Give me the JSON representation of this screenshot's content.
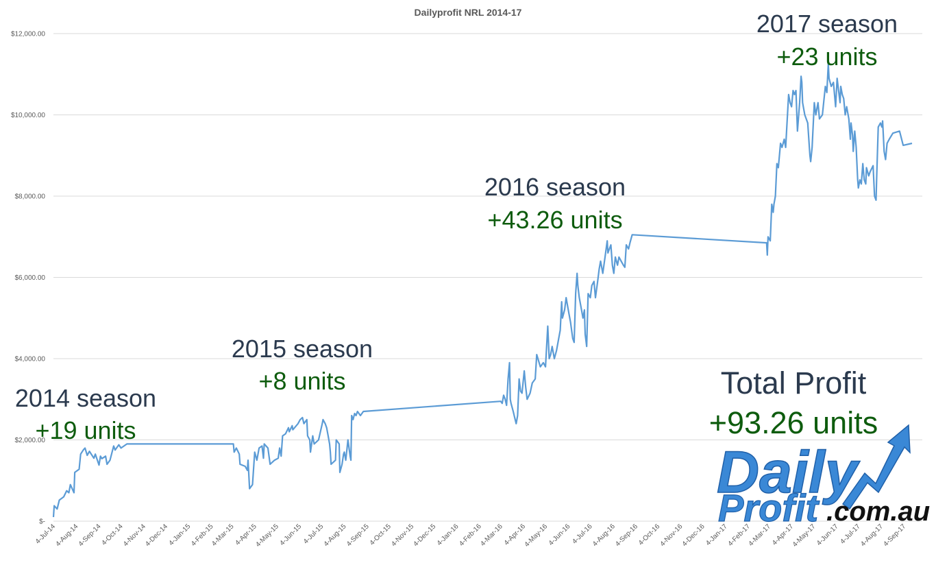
{
  "chart_data": {
    "type": "line",
    "title": "Dailyprofit NRL 2014-17",
    "xlabel": "",
    "ylabel": "",
    "ylim": [
      0,
      12000
    ],
    "y_ticks": [
      "$-",
      "$2,000.00",
      "$4,000.00",
      "$6,000.00",
      "$8,000.00",
      "$10,000.00",
      "$12,000.00"
    ],
    "y_tick_values": [
      0,
      2000,
      4000,
      6000,
      8000,
      10000,
      12000
    ],
    "x_range": [
      "2014-07-04",
      "2017-09-29"
    ],
    "x_ticks": [
      "4-Jul-14",
      "4-Aug-14",
      "4-Sep-14",
      "4-Oct-14",
      "4-Nov-14",
      "4-Dec-14",
      "4-Jan-15",
      "4-Feb-15",
      "4-Mar-15",
      "4-Apr-15",
      "4-May-15",
      "4-Jun-15",
      "4-Jul-15",
      "4-Aug-15",
      "4-Sep-15",
      "4-Oct-15",
      "4-Nov-15",
      "4-Dec-15",
      "4-Jan-16",
      "4-Feb-16",
      "4-Mar-16",
      "4-Apr-16",
      "4-May-16",
      "4-Jun-16",
      "4-Jul-16",
      "4-Aug-16",
      "4-Sep-16",
      "4-Oct-16",
      "4-Nov-16",
      "4-Dec-16",
      "4-Jan-17",
      "4-Feb-17",
      "4-Mar-17",
      "4-Apr-17",
      "4-May-17",
      "4-Jun-17",
      "4-Jul-17",
      "4-Aug-17",
      "4-Sep-17"
    ],
    "grid": true,
    "series_color": "#5b9bd5",
    "points": [
      [
        "2014-07-04",
        100
      ],
      [
        "2014-07-05",
        380
      ],
      [
        "2014-07-09",
        300
      ],
      [
        "2014-07-12",
        520
      ],
      [
        "2014-07-18",
        600
      ],
      [
        "2014-07-22",
        750
      ],
      [
        "2014-07-25",
        700
      ],
      [
        "2014-07-27",
        900
      ],
      [
        "2014-08-01",
        700
      ],
      [
        "2014-08-02",
        1200
      ],
      [
        "2014-08-08",
        1280
      ],
      [
        "2014-08-10",
        1650
      ],
      [
        "2014-08-14",
        1760
      ],
      [
        "2014-08-16",
        1800
      ],
      [
        "2014-08-19",
        1620
      ],
      [
        "2014-08-22",
        1720
      ],
      [
        "2014-08-28",
        1550
      ],
      [
        "2014-08-30",
        1650
      ],
      [
        "2014-09-04",
        1380
      ],
      [
        "2014-09-06",
        1600
      ],
      [
        "2014-09-08",
        1540
      ],
      [
        "2014-09-13",
        1600
      ],
      [
        "2014-09-15",
        1400
      ],
      [
        "2014-09-19",
        1500
      ],
      [
        "2014-09-24",
        1850
      ],
      [
        "2014-09-26",
        1750
      ],
      [
        "2014-10-01",
        1880
      ],
      [
        "2014-10-04",
        1800
      ],
      [
        "2014-10-12",
        1900
      ],
      [
        "2015-03-06",
        1900
      ],
      [
        "2015-03-07",
        1700
      ],
      [
        "2015-03-10",
        1800
      ],
      [
        "2015-03-14",
        1650
      ],
      [
        "2015-03-15",
        1400
      ],
      [
        "2015-03-22",
        1350
      ],
      [
        "2015-03-25",
        1250
      ],
      [
        "2015-03-26",
        1500
      ],
      [
        "2015-03-28",
        800
      ],
      [
        "2015-04-01",
        900
      ],
      [
        "2015-04-04",
        1700
      ],
      [
        "2015-04-07",
        1500
      ],
      [
        "2015-04-10",
        1800
      ],
      [
        "2015-04-14",
        1850
      ],
      [
        "2015-04-16",
        1550
      ],
      [
        "2015-04-17",
        1900
      ],
      [
        "2015-04-22",
        1800
      ],
      [
        "2015-04-25",
        1400
      ],
      [
        "2015-05-01",
        1500
      ],
      [
        "2015-05-06",
        1550
      ],
      [
        "2015-05-08",
        1800
      ],
      [
        "2015-05-10",
        1600
      ],
      [
        "2015-05-12",
        2100
      ],
      [
        "2015-05-16",
        2150
      ],
      [
        "2015-05-20",
        2300
      ],
      [
        "2015-05-21",
        2200
      ],
      [
        "2015-05-25",
        2350
      ],
      [
        "2015-05-26",
        2250
      ],
      [
        "2015-06-02",
        2400
      ],
      [
        "2015-06-05",
        2500
      ],
      [
        "2015-06-08",
        2550
      ],
      [
        "2015-06-10",
        2400
      ],
      [
        "2015-06-14",
        2500
      ],
      [
        "2015-06-15",
        2100
      ],
      [
        "2015-06-18",
        2000
      ],
      [
        "2015-06-19",
        1700
      ],
      [
        "2015-06-22",
        2100
      ],
      [
        "2015-06-24",
        1900
      ],
      [
        "2015-06-30",
        2000
      ],
      [
        "2015-07-05",
        2400
      ],
      [
        "2015-07-06",
        2500
      ],
      [
        "2015-07-09",
        2400
      ],
      [
        "2015-07-11",
        2300
      ],
      [
        "2015-07-13",
        2100
      ],
      [
        "2015-07-15",
        1900
      ],
      [
        "2015-07-16",
        1700
      ],
      [
        "2015-07-17",
        1400
      ],
      [
        "2015-07-23",
        1500
      ],
      [
        "2015-07-24",
        2000
      ],
      [
        "2015-07-28",
        1900
      ],
      [
        "2015-07-29",
        1200
      ],
      [
        "2015-08-01",
        1400
      ],
      [
        "2015-08-03",
        1650
      ],
      [
        "2015-08-04",
        1700
      ],
      [
        "2015-08-06",
        1500
      ],
      [
        "2015-08-09",
        2000
      ],
      [
        "2015-08-12",
        1600
      ],
      [
        "2015-08-13",
        1500
      ],
      [
        "2015-08-14",
        2600
      ],
      [
        "2015-08-16",
        2500
      ],
      [
        "2015-08-18",
        2650
      ],
      [
        "2015-08-20",
        2600
      ],
      [
        "2015-08-22",
        2700
      ],
      [
        "2015-08-26",
        2600
      ],
      [
        "2015-08-30",
        2700
      ],
      [
        "2016-03-04",
        2950
      ],
      [
        "2016-03-06",
        2900
      ],
      [
        "2016-03-08",
        3100
      ],
      [
        "2016-03-10",
        3000
      ],
      [
        "2016-03-12",
        2850
      ],
      [
        "2016-03-14",
        3500
      ],
      [
        "2016-03-16",
        3900
      ],
      [
        "2016-03-17",
        3000
      ],
      [
        "2016-03-18",
        2900
      ],
      [
        "2016-03-21",
        2700
      ],
      [
        "2016-03-23",
        2550
      ],
      [
        "2016-03-25",
        2400
      ],
      [
        "2016-03-27",
        2600
      ],
      [
        "2016-03-29",
        3500
      ],
      [
        "2016-03-31",
        3200
      ],
      [
        "2016-04-02",
        3150
      ],
      [
        "2016-04-05",
        3700
      ],
      [
        "2016-04-07",
        3300
      ],
      [
        "2016-04-09",
        3000
      ],
      [
        "2016-04-13",
        3150
      ],
      [
        "2016-04-16",
        3400
      ],
      [
        "2016-04-20",
        3500
      ],
      [
        "2016-04-22",
        4100
      ],
      [
        "2016-04-27",
        3800
      ],
      [
        "2016-05-01",
        3900
      ],
      [
        "2016-05-04",
        3800
      ],
      [
        "2016-05-07",
        4800
      ],
      [
        "2016-05-09",
        4000
      ],
      [
        "2016-05-11",
        4100
      ],
      [
        "2016-05-13",
        4300
      ],
      [
        "2016-05-16",
        4000
      ],
      [
        "2016-05-19",
        4200
      ],
      [
        "2016-05-22",
        4500
      ],
      [
        "2016-05-24",
        4700
      ],
      [
        "2016-05-26",
        5400
      ],
      [
        "2016-05-27",
        5000
      ],
      [
        "2016-05-30",
        5200
      ],
      [
        "2016-06-01",
        5500
      ],
      [
        "2016-06-03",
        5300
      ],
      [
        "2016-06-05",
        5100
      ],
      [
        "2016-06-07",
        4900
      ],
      [
        "2016-06-10",
        4500
      ],
      [
        "2016-06-12",
        4400
      ],
      [
        "2016-06-14",
        5600
      ],
      [
        "2016-06-16",
        6100
      ],
      [
        "2016-06-17",
        5800
      ],
      [
        "2016-06-19",
        5500
      ],
      [
        "2016-06-21",
        5300
      ],
      [
        "2016-06-24",
        5000
      ],
      [
        "2016-06-26",
        5200
      ],
      [
        "2016-06-27",
        4600
      ],
      [
        "2016-06-29",
        4300
      ],
      [
        "2016-07-01",
        5600
      ],
      [
        "2016-07-04",
        5500
      ],
      [
        "2016-07-06",
        5800
      ],
      [
        "2016-07-09",
        5900
      ],
      [
        "2016-07-11",
        5500
      ],
      [
        "2016-07-14",
        5900
      ],
      [
        "2016-07-16",
        6200
      ],
      [
        "2016-07-18",
        6400
      ],
      [
        "2016-07-21",
        6100
      ],
      [
        "2016-07-24",
        6500
      ],
      [
        "2016-07-27",
        6900
      ],
      [
        "2016-07-28",
        6600
      ],
      [
        "2016-08-01",
        6800
      ],
      [
        "2016-08-03",
        6300
      ],
      [
        "2016-08-05",
        6100
      ],
      [
        "2016-08-07",
        6500
      ],
      [
        "2016-08-10",
        6300
      ],
      [
        "2016-08-12",
        6500
      ],
      [
        "2016-08-15",
        6400
      ],
      [
        "2016-08-18",
        6300
      ],
      [
        "2016-08-20",
        6250
      ],
      [
        "2016-08-22",
        6800
      ],
      [
        "2016-08-25",
        6700
      ],
      [
        "2016-08-27",
        6850
      ],
      [
        "2016-08-30",
        7050
      ],
      [
        "2017-03-01",
        6850
      ],
      [
        "2017-03-02",
        6550
      ],
      [
        "2017-03-03",
        7000
      ],
      [
        "2017-03-06",
        6900
      ],
      [
        "2017-03-08",
        7800
      ],
      [
        "2017-03-10",
        7600
      ],
      [
        "2017-03-11",
        7800
      ],
      [
        "2017-03-13",
        8000
      ],
      [
        "2017-03-15",
        8800
      ],
      [
        "2017-03-17",
        8700
      ],
      [
        "2017-03-20",
        9300
      ],
      [
        "2017-03-22",
        9200
      ],
      [
        "2017-03-25",
        9400
      ],
      [
        "2017-03-27",
        9200
      ],
      [
        "2017-03-31",
        10500
      ],
      [
        "2017-04-02",
        10300
      ],
      [
        "2017-04-04",
        10200
      ],
      [
        "2017-04-06",
        10600
      ],
      [
        "2017-04-08",
        10500
      ],
      [
        "2017-04-10",
        10600
      ],
      [
        "2017-04-12",
        9600
      ],
      [
        "2017-04-15",
        10300
      ],
      [
        "2017-04-17",
        10950
      ],
      [
        "2017-04-18",
        10800
      ],
      [
        "2017-04-19",
        10300
      ],
      [
        "2017-04-22",
        10000
      ],
      [
        "2017-04-26",
        9800
      ],
      [
        "2017-04-29",
        9000
      ],
      [
        "2017-04-30",
        8850
      ],
      [
        "2017-05-02",
        9200
      ],
      [
        "2017-05-05",
        10300
      ],
      [
        "2017-05-07",
        10000
      ],
      [
        "2017-05-10",
        10300
      ],
      [
        "2017-05-12",
        9900
      ],
      [
        "2017-05-16",
        10000
      ],
      [
        "2017-05-20",
        10700
      ],
      [
        "2017-05-22",
        10550
      ],
      [
        "2017-05-24",
        11250
      ],
      [
        "2017-05-25",
        10900
      ],
      [
        "2017-05-28",
        10700
      ],
      [
        "2017-05-31",
        10800
      ],
      [
        "2017-06-03",
        10200
      ],
      [
        "2017-06-05",
        10900
      ],
      [
        "2017-06-07",
        10600
      ],
      [
        "2017-06-09",
        10300
      ],
      [
        "2017-06-10",
        10700
      ],
      [
        "2017-06-12",
        10500
      ],
      [
        "2017-06-14",
        10400
      ],
      [
        "2017-06-16",
        10000
      ],
      [
        "2017-06-18",
        10200
      ],
      [
        "2017-06-21",
        9900
      ],
      [
        "2017-06-23",
        9400
      ],
      [
        "2017-06-24",
        9800
      ],
      [
        "2017-06-26",
        9500
      ],
      [
        "2017-06-27",
        9100
      ],
      [
        "2017-06-29",
        9600
      ],
      [
        "2017-07-01",
        9200
      ],
      [
        "2017-07-03",
        8400
      ],
      [
        "2017-07-04",
        8200
      ],
      [
        "2017-07-06",
        8400
      ],
      [
        "2017-07-08",
        8300
      ],
      [
        "2017-07-10",
        8800
      ],
      [
        "2017-07-12",
        8400
      ],
      [
        "2017-07-14",
        8300
      ],
      [
        "2017-07-15",
        8700
      ],
      [
        "2017-07-18",
        8500
      ],
      [
        "2017-07-20",
        8600
      ],
      [
        "2017-07-24",
        8750
      ],
      [
        "2017-07-26",
        8000
      ],
      [
        "2017-07-28",
        7900
      ],
      [
        "2017-07-29",
        8500
      ],
      [
        "2017-07-31",
        9700
      ],
      [
        "2017-08-03",
        9800
      ],
      [
        "2017-08-05",
        9700
      ],
      [
        "2017-08-06",
        9850
      ],
      [
        "2017-08-08",
        9100
      ],
      [
        "2017-08-10",
        8900
      ],
      [
        "2017-08-12",
        9300
      ],
      [
        "2017-08-15",
        9400
      ],
      [
        "2017-08-20",
        9550
      ],
      [
        "2017-08-29",
        9600
      ],
      [
        "2017-09-03",
        9250
      ],
      [
        "2017-09-15",
        9300
      ]
    ]
  },
  "annotations": [
    {
      "id": "2014",
      "season": "2014 season",
      "units": "+19 units"
    },
    {
      "id": "2015",
      "season": "2015 season",
      "units": "+8 units"
    },
    {
      "id": "2016",
      "season": "2016 season",
      "units": "+43.26 units"
    },
    {
      "id": "2017",
      "season": "2017 season",
      "units": "+23 units"
    }
  ],
  "total": {
    "label": "Total Profit",
    "units": "+93.26 units"
  },
  "logo": {
    "line1": "Daily",
    "line2": "Profit",
    "domain": ".com.au"
  }
}
